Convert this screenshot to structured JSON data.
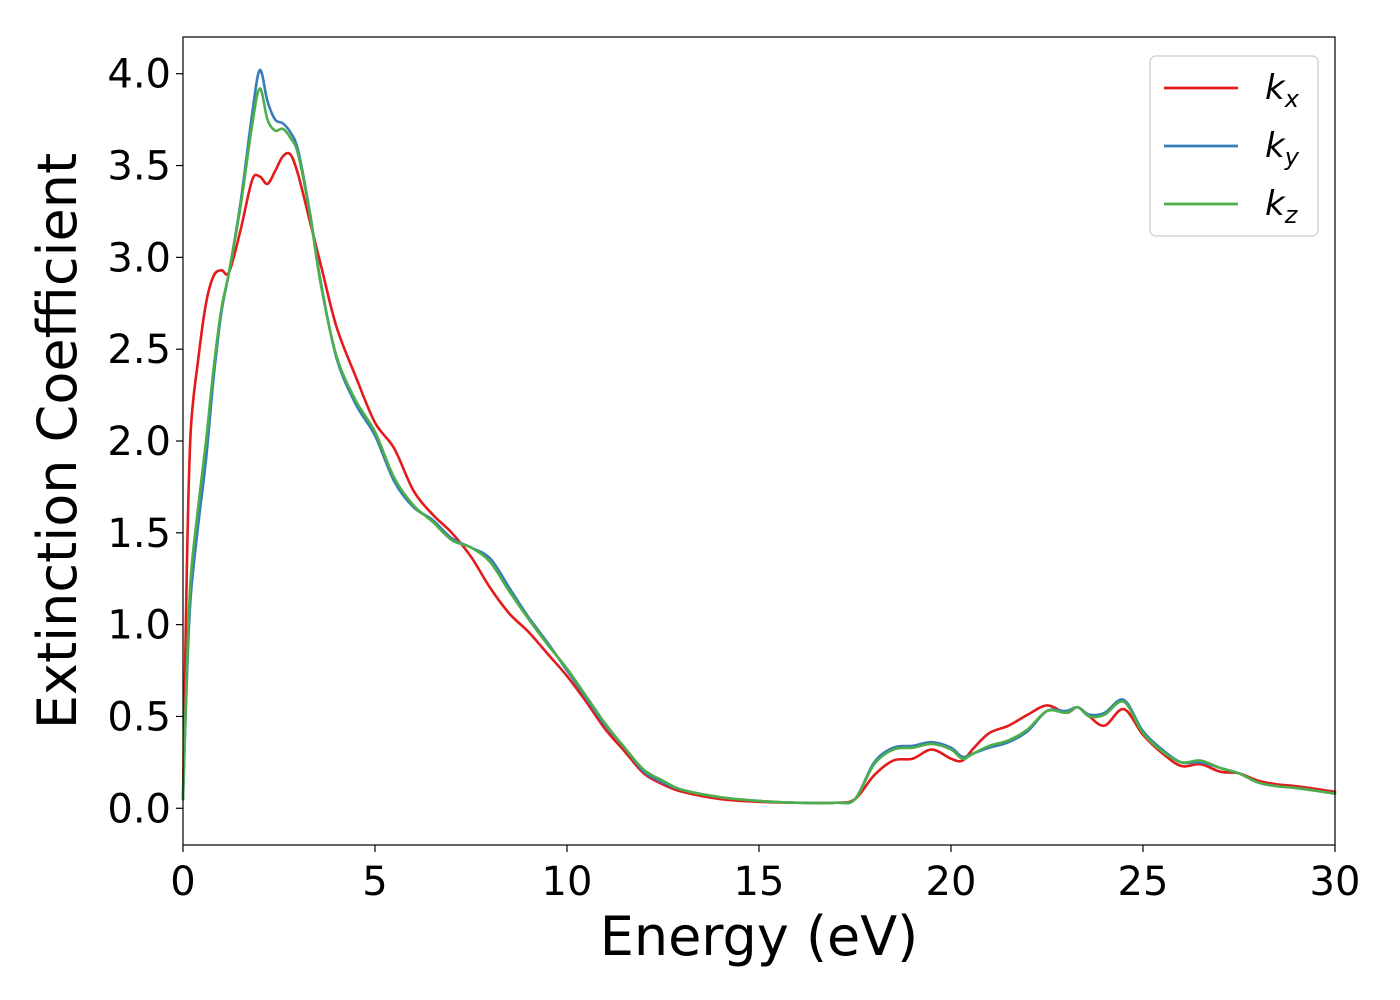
{
  "chart_data": {
    "type": "line",
    "xlabel": "Energy (eV)",
    "ylabel": "Extinction Coefficient",
    "xlim": [
      0,
      30
    ],
    "ylim": [
      -0.2,
      4.2
    ],
    "xticks": [
      0,
      5,
      10,
      15,
      20,
      25,
      30
    ],
    "xtick_labels": [
      "0",
      "5",
      "10",
      "15",
      "20",
      "25",
      "30"
    ],
    "yticks": [
      0.0,
      0.5,
      1.0,
      1.5,
      2.0,
      2.5,
      3.0,
      3.5,
      4.0
    ],
    "ytick_labels": [
      "0.0",
      "0.5",
      "1.0",
      "1.5",
      "2.0",
      "2.5",
      "3.0",
      "3.5",
      "4.0"
    ],
    "grid": false,
    "legend_position": "top-right",
    "series": [
      {
        "name": "k_x",
        "label_base": "k",
        "label_sub": "x",
        "color": "#e41a1c",
        "x": [
          0,
          0.1,
          0.2,
          0.4,
          0.6,
          0.8,
          1.0,
          1.2,
          1.5,
          1.8,
          2.0,
          2.2,
          2.4,
          2.6,
          2.8,
          3.0,
          3.3,
          3.6,
          4.0,
          4.5,
          5.0,
          5.5,
          6.0,
          6.5,
          7.0,
          7.5,
          8.0,
          8.5,
          9.0,
          9.5,
          10.0,
          10.5,
          11.0,
          11.5,
          12.0,
          12.5,
          13.0,
          14.0,
          15.0,
          16.0,
          17.0,
          17.5,
          18.0,
          18.5,
          19.0,
          19.5,
          20.0,
          20.3,
          20.6,
          21.0,
          21.5,
          22.0,
          22.5,
          23.0,
          23.3,
          23.6,
          24.0,
          24.5,
          25.0,
          25.5,
          26.0,
          26.5,
          27.0,
          27.5,
          28.0,
          28.5,
          29.0,
          30.0
        ],
        "y": [
          0.05,
          1.3,
          2.05,
          2.45,
          2.75,
          2.9,
          2.93,
          2.92,
          3.15,
          3.42,
          3.44,
          3.4,
          3.47,
          3.55,
          3.56,
          3.45,
          3.2,
          2.95,
          2.62,
          2.35,
          2.1,
          1.96,
          1.73,
          1.6,
          1.5,
          1.37,
          1.2,
          1.06,
          0.96,
          0.84,
          0.72,
          0.58,
          0.43,
          0.31,
          0.19,
          0.13,
          0.09,
          0.05,
          0.035,
          0.03,
          0.03,
          0.05,
          0.18,
          0.26,
          0.27,
          0.32,
          0.27,
          0.26,
          0.33,
          0.41,
          0.45,
          0.51,
          0.56,
          0.52,
          0.55,
          0.5,
          0.45,
          0.54,
          0.4,
          0.3,
          0.23,
          0.24,
          0.2,
          0.19,
          0.15,
          0.13,
          0.12,
          0.09
        ]
      },
      {
        "name": "k_y",
        "label_base": "k",
        "label_sub": "y",
        "color": "#377eb8",
        "x": [
          0,
          0.1,
          0.2,
          0.4,
          0.6,
          0.8,
          1.0,
          1.2,
          1.5,
          1.8,
          2.0,
          2.2,
          2.4,
          2.6,
          2.8,
          3.0,
          3.3,
          3.6,
          4.0,
          4.5,
          5.0,
          5.5,
          6.0,
          6.5,
          7.0,
          7.5,
          8.0,
          8.5,
          9.0,
          9.5,
          10.0,
          10.5,
          11.0,
          11.5,
          12.0,
          12.5,
          13.0,
          14.0,
          15.0,
          16.0,
          17.0,
          17.5,
          18.0,
          18.5,
          19.0,
          19.5,
          20.0,
          20.3,
          20.6,
          21.0,
          21.5,
          22.0,
          22.5,
          23.0,
          23.3,
          23.6,
          24.0,
          24.5,
          25.0,
          25.5,
          26.0,
          26.5,
          27.0,
          27.5,
          28.0,
          28.5,
          29.0,
          30.0
        ],
        "y": [
          0.05,
          0.7,
          1.15,
          1.55,
          1.9,
          2.35,
          2.7,
          2.92,
          3.3,
          3.78,
          4.02,
          3.85,
          3.75,
          3.73,
          3.68,
          3.58,
          3.25,
          2.85,
          2.45,
          2.2,
          2.03,
          1.78,
          1.64,
          1.57,
          1.47,
          1.42,
          1.36,
          1.2,
          1.04,
          0.9,
          0.75,
          0.6,
          0.45,
          0.33,
          0.2,
          0.14,
          0.1,
          0.06,
          0.04,
          0.03,
          0.03,
          0.05,
          0.25,
          0.33,
          0.34,
          0.36,
          0.33,
          0.28,
          0.3,
          0.33,
          0.36,
          0.42,
          0.53,
          0.53,
          0.55,
          0.51,
          0.52,
          0.59,
          0.42,
          0.32,
          0.25,
          0.25,
          0.22,
          0.19,
          0.14,
          0.12,
          0.11,
          0.08
        ]
      },
      {
        "name": "k_z",
        "label_base": "k",
        "label_sub": "z",
        "color": "#4daf4a",
        "x": [
          0,
          0.1,
          0.2,
          0.4,
          0.6,
          0.8,
          1.0,
          1.2,
          1.5,
          1.8,
          2.0,
          2.2,
          2.4,
          2.6,
          2.8,
          3.0,
          3.3,
          3.6,
          4.0,
          4.5,
          5.0,
          5.5,
          6.0,
          6.5,
          7.0,
          7.5,
          8.0,
          8.5,
          9.0,
          9.5,
          10.0,
          10.5,
          11.0,
          11.5,
          12.0,
          12.5,
          13.0,
          14.0,
          15.0,
          16.0,
          17.0,
          17.5,
          18.0,
          18.5,
          19.0,
          19.5,
          20.0,
          20.3,
          20.6,
          21.0,
          21.5,
          22.0,
          22.5,
          23.0,
          23.3,
          23.6,
          24.0,
          24.5,
          25.0,
          25.5,
          26.0,
          26.5,
          27.0,
          27.5,
          28.0,
          28.5,
          29.0,
          30.0
        ],
        "y": [
          0.05,
          0.75,
          1.25,
          1.65,
          2.0,
          2.4,
          2.72,
          2.92,
          3.28,
          3.72,
          3.92,
          3.75,
          3.69,
          3.7,
          3.65,
          3.56,
          3.24,
          2.84,
          2.46,
          2.22,
          2.05,
          1.8,
          1.65,
          1.56,
          1.46,
          1.42,
          1.34,
          1.18,
          1.03,
          0.89,
          0.76,
          0.61,
          0.46,
          0.33,
          0.21,
          0.15,
          0.1,
          0.06,
          0.04,
          0.03,
          0.03,
          0.05,
          0.24,
          0.32,
          0.33,
          0.35,
          0.32,
          0.27,
          0.3,
          0.34,
          0.37,
          0.43,
          0.53,
          0.52,
          0.55,
          0.5,
          0.51,
          0.58,
          0.41,
          0.31,
          0.25,
          0.26,
          0.22,
          0.19,
          0.14,
          0.12,
          0.11,
          0.08
        ]
      }
    ]
  }
}
